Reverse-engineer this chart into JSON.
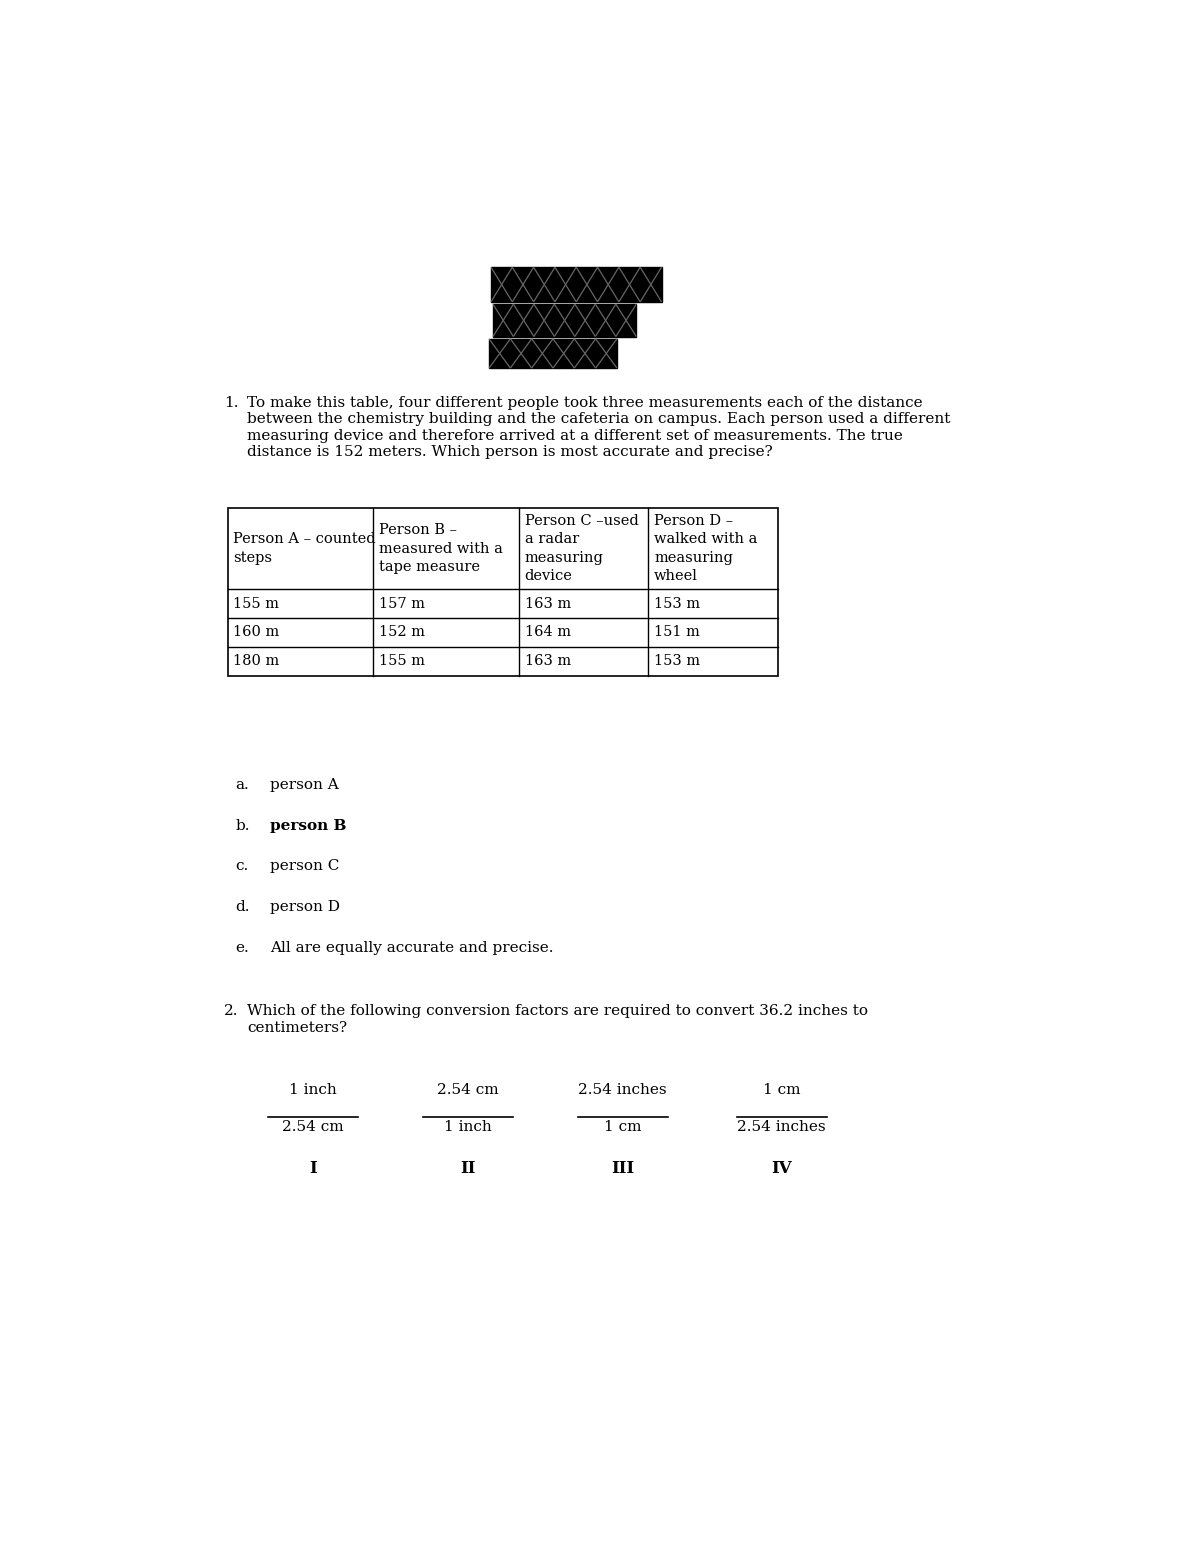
{
  "background_color": "#ffffff",
  "page_width": 12.0,
  "page_height": 15.53,
  "q1_text_line1": "To make this table, four different people took three measurements each of the distance",
  "q1_text_line2": "between the chemistry building and the cafeteria on campus. Each person used a different",
  "q1_text_line3": "measuring device and therefore arrived at a different set of measurements. The true",
  "q1_text_line4": "distance is 152 meters. Which person is most accurate and precise?",
  "table_headers": [
    "Person A – counted\nsteps",
    "Person B –\nmeasured with a\ntape measure",
    "Person C –used\na radar\nmeasuring\ndevice",
    "Person D –\nwalked with a\nmeasuring\nwheel"
  ],
  "table_data": [
    [
      "155 m",
      "157 m",
      "163 m",
      "153 m"
    ],
    [
      "160 m",
      "152 m",
      "164 m",
      "151 m"
    ],
    [
      "180 m",
      "155 m",
      "163 m",
      "153 m"
    ]
  ],
  "choices": [
    {
      "label": "a.",
      "text": "person A",
      "bold": false
    },
    {
      "label": "b.",
      "text": "person B",
      "bold": true
    },
    {
      "label": "c.",
      "text": "person C",
      "bold": false
    },
    {
      "label": "d.",
      "text": "person D",
      "bold": false
    },
    {
      "label": "e.",
      "text": "All are equally accurate and precise.",
      "bold": false
    }
  ],
  "q2_text_line1": "Which of the following conversion factors are required to convert 36.2 inches to",
  "q2_text_line2": "centimeters?",
  "fractions": [
    {
      "numerator": "1 inch",
      "denominator": "2.54 cm",
      "label": "I"
    },
    {
      "numerator": "2.54 cm",
      "denominator": "1 inch",
      "label": "II"
    },
    {
      "numerator": "2.54 inches",
      "denominator": "1 cm",
      "label": "III"
    },
    {
      "numerator": "1 cm",
      "denominator": "2.54 inches",
      "label": "IV"
    }
  ],
  "font_family": "DejaVu Serif",
  "body_fontsize": 11,
  "table_fontsize": 10.5,
  "choice_fontsize": 11
}
